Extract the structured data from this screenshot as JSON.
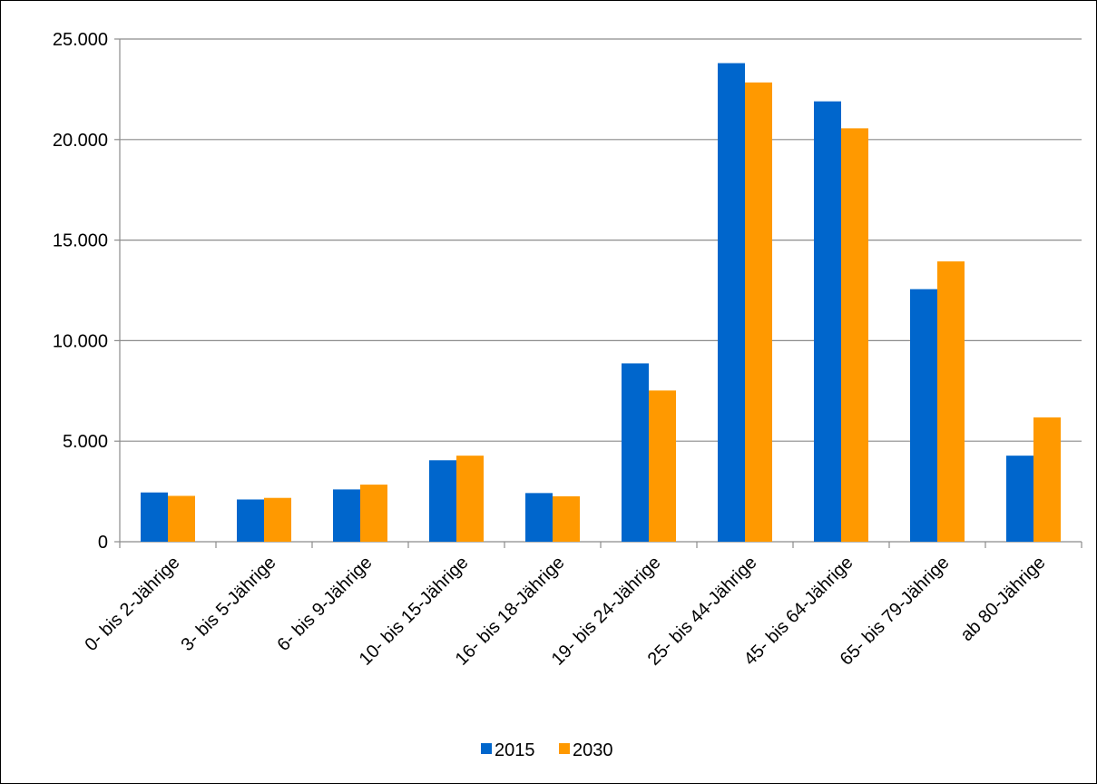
{
  "chart_data": {
    "type": "bar",
    "categories": [
      "0- bis 2-Jährige",
      "3- bis 5-Jährige",
      "6- bis 9-Jährige",
      "10- bis 15-Jährige",
      "16- bis 18-Jährige",
      "19- bis 24-Jährige",
      "25- bis 44-Jährige",
      "45- bis 64-Jährige",
      "65- bis 79-Jährige",
      "ab 80-Jährige"
    ],
    "series": [
      {
        "name": "2015",
        "color": "#0066CC",
        "values": [
          2450,
          2100,
          2600,
          4050,
          2420,
          8870,
          23800,
          21900,
          12560,
          4280
        ]
      },
      {
        "name": "2030",
        "color": "#FF9900",
        "values": [
          2280,
          2180,
          2840,
          4280,
          2260,
          7520,
          22840,
          20560,
          13940,
          6180
        ]
      }
    ],
    "ylim": [
      0,
      25000
    ],
    "yticks": [
      0,
      5000,
      10000,
      15000,
      20000,
      25000
    ],
    "ytick_labels": [
      "0",
      "5.000",
      "10.000",
      "15.000",
      "20.000",
      "25.000"
    ],
    "grid": true,
    "legend_position": "bottom",
    "title": "",
    "xlabel": "",
    "ylabel": ""
  }
}
